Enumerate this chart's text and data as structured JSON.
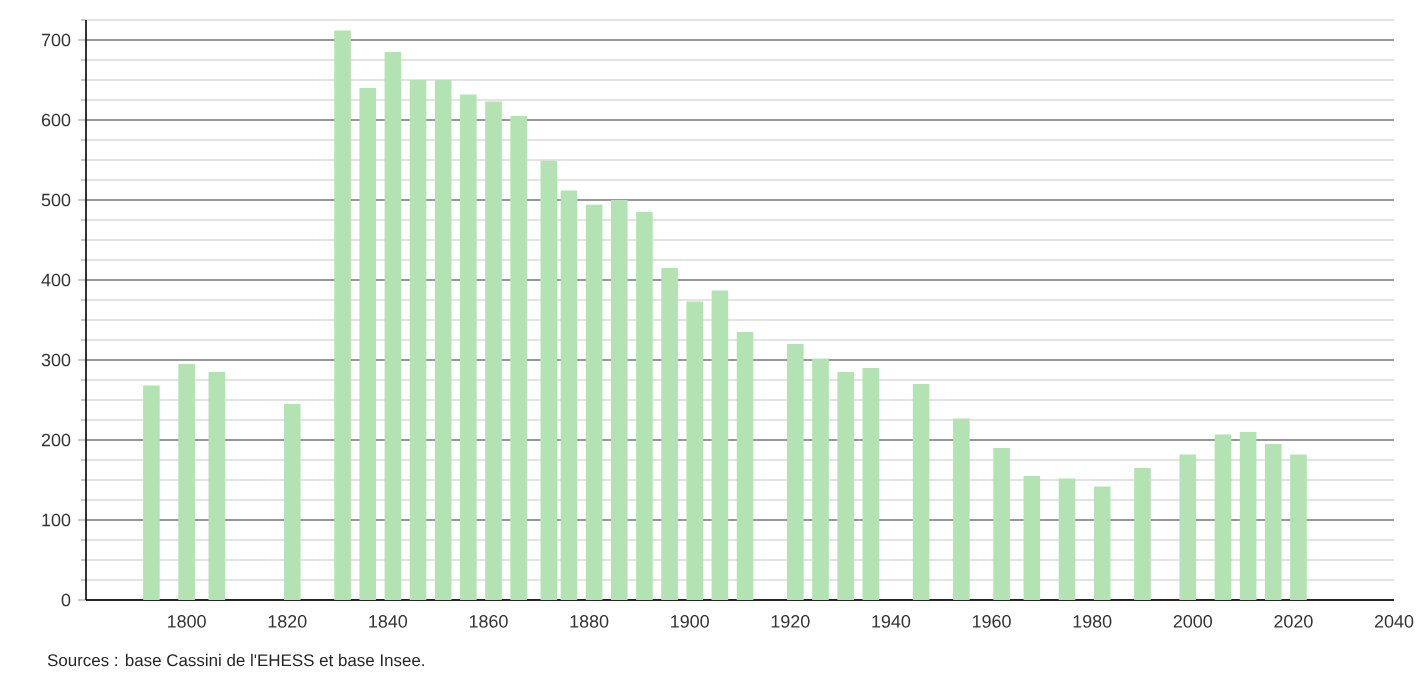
{
  "chart_data": {
    "type": "bar",
    "color": "#b3e3b3",
    "x": [
      1793,
      1800,
      1806,
      1821,
      1831,
      1836,
      1841,
      1846,
      1851,
      1856,
      1861,
      1866,
      1872,
      1876,
      1881,
      1886,
      1891,
      1896,
      1901,
      1906,
      1911,
      1921,
      1926,
      1931,
      1936,
      1946,
      1954,
      1962,
      1968,
      1975,
      1982,
      1990,
      1999,
      2006,
      2011,
      2016,
      2021
    ],
    "values": [
      268,
      295,
      285,
      245,
      712,
      640,
      685,
      650,
      650,
      632,
      623,
      605,
      549,
      512,
      494,
      500,
      485,
      415,
      373,
      387,
      335,
      320,
      302,
      285,
      290,
      270,
      227,
      190,
      155,
      152,
      142,
      165,
      182,
      207,
      210,
      195,
      182
    ],
    "xlim": [
      1780,
      2040
    ],
    "xticks": [
      1800,
      1820,
      1840,
      1860,
      1880,
      1900,
      1920,
      1940,
      1960,
      1980,
      2000,
      2020,
      2040
    ],
    "ylim": [
      0,
      725
    ],
    "yticks": [
      0,
      {
        "value": 25,
        "label": null
      },
      {
        "value": 50,
        "label": null
      },
      {
        "value": 75,
        "label": null
      },
      100,
      {
        "value": 125,
        "label": null
      },
      {
        "value": 150,
        "label": null
      },
      {
        "value": 175,
        "label": null
      },
      200,
      {
        "value": 225,
        "label": null
      },
      {
        "value": 250,
        "label": null
      },
      {
        "value": 275,
        "label": null
      },
      300,
      {
        "value": 325,
        "label": null
      },
      {
        "value": 350,
        "label": null
      },
      {
        "value": 375,
        "label": null
      },
      400,
      {
        "value": 425,
        "label": null
      },
      {
        "value": 450,
        "label": null
      },
      {
        "value": 475,
        "label": null
      },
      500,
      {
        "value": 525,
        "label": null
      },
      {
        "value": 550,
        "label": null
      },
      {
        "value": 575,
        "label": null
      },
      600,
      {
        "value": 625,
        "label": null
      },
      {
        "value": 650,
        "label": null
      },
      {
        "value": 675,
        "label": null
      },
      700,
      {
        "value": 725,
        "label": null
      }
    ],
    "grid": "y",
    "annotations": [
      "Sources : base Cassini de l'EHESS et base Insee."
    ]
  }
}
